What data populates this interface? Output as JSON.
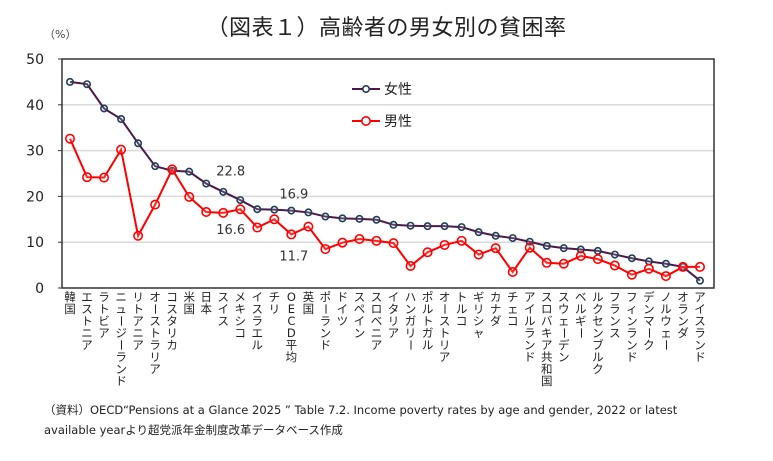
{
  "chart_data": {
    "type": "line",
    "title": "（図表１）高齢者の男女別の貧困率",
    "ylabel": "（%）",
    "xlabel": "",
    "ylim": [
      0,
      50
    ],
    "yticks": [
      0,
      10,
      20,
      30,
      40,
      50
    ],
    "grid": true,
    "legend_position": "top-center",
    "categories": [
      "韓国",
      "エストニア",
      "ラトビア",
      "ニュージーランド",
      "リトアニア",
      "オーストラリア",
      "コスタリカ",
      "米国",
      "日本",
      "スイス",
      "メキシコ",
      "イスラエル",
      "チリ",
      "OECD平均",
      "英国",
      "ポーランド",
      "ドイツ",
      "スペイン",
      "スロベニア",
      "イタリア",
      "ハンガリー",
      "ポルトガル",
      "オーストリア",
      "トルコ",
      "ギリシャ",
      "カナダ",
      "チェコ",
      "アイルランド",
      "スロバキア共和国",
      "スウェーデン",
      "ベルギー",
      "ルクセンブルク",
      "フランス",
      "フィンランド",
      "デンマーク",
      "ノルウェー",
      "オランダ",
      "アイスランド"
    ],
    "series": [
      {
        "name": "女性",
        "color": "#4b1a4a",
        "marker_color": "#1f3d55",
        "values": [
          45.0,
          44.5,
          39.2,
          36.9,
          31.6,
          26.6,
          25.6,
          25.4,
          22.8,
          21.0,
          19.2,
          17.2,
          17.1,
          16.9,
          16.5,
          15.6,
          15.2,
          15.1,
          14.9,
          13.8,
          13.6,
          13.5,
          13.5,
          13.3,
          12.2,
          11.4,
          10.9,
          10.1,
          9.2,
          8.7,
          8.4,
          8.1,
          7.3,
          6.5,
          5.8,
          5.3,
          4.6,
          1.6
        ]
      },
      {
        "name": "男性",
        "color": "#ff0000",
        "marker_color": "#ff0000",
        "values": [
          32.6,
          24.2,
          24.1,
          30.2,
          11.4,
          18.2,
          25.9,
          19.9,
          16.6,
          16.4,
          17.2,
          13.2,
          15.0,
          11.7,
          13.4,
          8.5,
          9.9,
          10.7,
          10.3,
          9.8,
          4.8,
          7.8,
          9.4,
          10.3,
          7.3,
          8.7,
          3.5,
          8.8,
          5.5,
          5.3,
          7.0,
          6.3,
          4.9,
          2.9,
          4.2,
          2.6,
          4.6,
          4.6
        ]
      }
    ],
    "annotations": [
      {
        "text": "22.8",
        "category": "日本",
        "series": "女性"
      },
      {
        "text": "16.6",
        "category": "日本",
        "series": "男性"
      },
      {
        "text": "16.9",
        "category": "OECD平均",
        "series": "女性"
      },
      {
        "text": "11.7",
        "category": "OECD平均",
        "series": "男性"
      }
    ]
  },
  "source_note": {
    "line1": "（資料）OECD“Pensions at a Glance 2025 ” Table 7.2. Income poverty rates by age and gender, 2022 or latest",
    "line2": "available yearより超党派年金制度改革データベース作成"
  }
}
